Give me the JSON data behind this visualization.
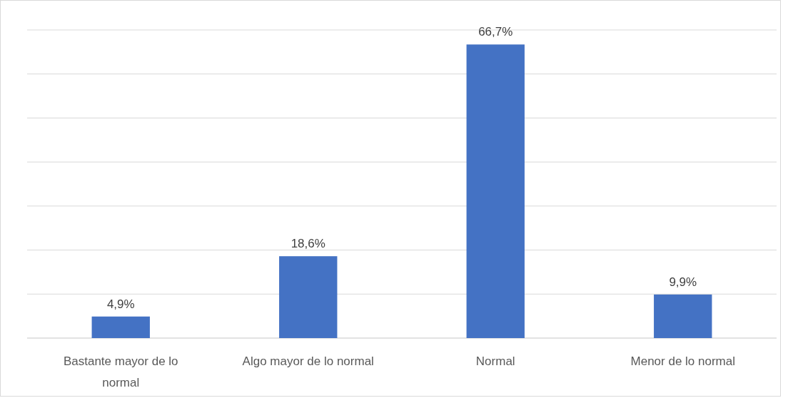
{
  "chart_data": {
    "type": "bar",
    "categories": [
      "Bastante mayor de lo normal",
      "Algo mayor de lo normal",
      "Normal",
      "Menor de lo normal"
    ],
    "values": [
      4.9,
      18.6,
      66.7,
      9.9
    ],
    "value_labels": [
      "4,9%",
      "18,6%",
      "66,7%",
      "9,9%"
    ],
    "color": "#4472c4",
    "ylim": [
      0,
      70
    ],
    "yticks": [
      {
        "value": 0,
        "label": null
      },
      {
        "value": 10,
        "label": null
      },
      {
        "value": 20,
        "label": null
      },
      {
        "value": 30,
        "label": null
      },
      {
        "value": 40,
        "label": null
      },
      {
        "value": 50,
        "label": null
      },
      {
        "value": 60,
        "label": null
      },
      {
        "value": 70,
        "label": null
      }
    ],
    "tick_labels": "x",
    "grid": "y"
  }
}
